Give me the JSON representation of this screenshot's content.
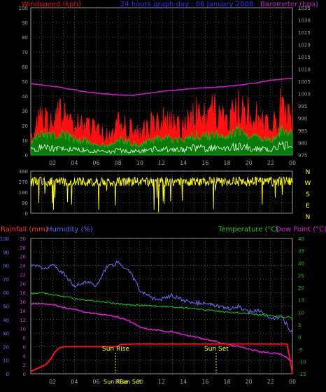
{
  "colors": {
    "background": "#000000",
    "frame": "#9a9a9a",
    "grid": "#7f7f7f",
    "wind_title": "#e01010",
    "header_title": "#3030ff",
    "baro_title": "#c020c0",
    "rain_title": "#ff3030",
    "humidity_title": "#6060ff",
    "temp_title": "#10d010",
    "tick_grey": "#9a9a9a",
    "left_axis_red": "#e03030",
    "left_axis_purple": "#b040b0",
    "hum_axis_blue": "#6666ff",
    "right_axis_green": "#10c010",
    "x_tick_yellow": "#ffff00",
    "wind_gust": "#ff1010",
    "wind_avg": "#10c010",
    "wind_low": "#e8ffe8",
    "barometer": "#c020c0",
    "direction": "#ffff00",
    "humidity_line": "#7070ff",
    "temperature_line": "#10d010",
    "dewpoint_line": "#d020d0",
    "rainfall_line": "#ff1010",
    "annotation": "#ffff00"
  },
  "chart_data": [
    {
      "type": "line",
      "panel": "wind-barometer",
      "header": "24 hours graph day : 06 January 2008",
      "ylabel_left": "Windspeed (kph)",
      "ylabel_right": "Barometer (hpa)",
      "ylim_left": [
        0,
        100
      ],
      "yticks_left": [
        "0",
        "10",
        "20",
        "30",
        "40",
        "50",
        "60",
        "70",
        "80",
        "90",
        "100"
      ],
      "ylim_right": [
        975,
        1035
      ],
      "yticks_right": [
        "975",
        "980",
        "985",
        "990",
        "995",
        "1000",
        "1005",
        "1010",
        "1015",
        "1020",
        "1025",
        "1030",
        "1035"
      ],
      "xticks": [
        "02",
        "04",
        "06",
        "08",
        "10",
        "12",
        "14",
        "16",
        "18",
        "20",
        "22",
        "00"
      ],
      "grid": true,
      "x": [
        0,
        1,
        2,
        3,
        4,
        5,
        6,
        7,
        8,
        9,
        10,
        11,
        12,
        13,
        14,
        15,
        16,
        17,
        18,
        19,
        20,
        21,
        22,
        23,
        24
      ],
      "series": [
        {
          "name": "Barometer",
          "axis": "right",
          "values": [
            1004.0,
            1003.6,
            1003.0,
            1002.3,
            1001.5,
            1000.7,
            1000.3,
            999.8,
            999.4,
            999.3,
            999.6,
            1000.2,
            1000.9,
            1001.3,
            1001.7,
            1002.1,
            1002.4,
            1002.6,
            1002.9,
            1003.4,
            1003.9,
            1004.7,
            1005.4,
            1005.9,
            1006.2
          ]
        },
        {
          "name": "Gust",
          "axis": "left",
          "values": [
            20,
            27,
            24,
            33,
            23,
            22,
            19,
            15,
            23,
            20,
            17,
            23,
            26,
            23,
            21,
            31,
            29,
            34,
            28,
            37,
            31,
            29,
            22,
            37,
            30
          ]
        },
        {
          "name": "Average",
          "axis": "left",
          "values": [
            11,
            14,
            13,
            15,
            11,
            10,
            8,
            6,
            11,
            9,
            7,
            10,
            13,
            11,
            10,
            14,
            13,
            15,
            12,
            17,
            14,
            13,
            10,
            18,
            14
          ]
        },
        {
          "name": "Low",
          "axis": "left",
          "values": [
            4,
            6,
            5,
            6,
            4,
            4,
            3,
            2,
            4,
            3,
            3,
            4,
            5,
            4,
            4,
            6,
            5,
            6,
            5,
            7,
            6,
            5,
            4,
            8,
            6
          ]
        }
      ]
    },
    {
      "type": "line",
      "panel": "wind-direction",
      "ylim": [
        0,
        360
      ],
      "yticks_left": [
        "0",
        "90",
        "180",
        "270",
        "360"
      ],
      "yticks_right": [
        "N",
        "W",
        "S",
        "E",
        "N"
      ],
      "xlim": [
        0,
        24
      ],
      "mean_direction": 270,
      "grid": true
    },
    {
      "type": "line",
      "panel": "rain-humidity-temperature",
      "ylabel_rain": "Rainfall (mm)",
      "ylabel_humidity": "Humidity (%)",
      "ylabel_temp": "Temperature (°C)",
      "ylabel_dew": "Dew Point (°C)",
      "ylim_rain": [
        0,
        30
      ],
      "yticks_rain": [
        "0",
        "2",
        "4",
        "6",
        "8",
        "10",
        "12",
        "14",
        "16",
        "18",
        "20",
        "22",
        "24",
        "26",
        "28",
        "30"
      ],
      "ylim_humidity": [
        0,
        100
      ],
      "yticks_humidity": [
        "0",
        "10",
        "20",
        "30",
        "40",
        "50",
        "60",
        "70",
        "80",
        "90",
        "100"
      ],
      "ylim_temp": [
        -15,
        40
      ],
      "yticks_temp": [
        "-15",
        "-10",
        "-5",
        "0",
        "5",
        "10",
        "15",
        "20",
        "25",
        "30",
        "35",
        "40"
      ],
      "xticks": [
        "02",
        "04",
        "06",
        "08",
        "10",
        "12",
        "14",
        "16",
        "18",
        "20",
        "22",
        "00"
      ],
      "grid": true,
      "x": [
        0,
        1,
        2,
        3,
        4,
        5,
        6,
        7,
        8,
        9,
        10,
        11,
        12,
        13,
        14,
        15,
        16,
        17,
        18,
        19,
        20,
        21,
        22,
        23,
        24
      ],
      "series": [
        {
          "name": "Humidity",
          "axis": "humidity",
          "values": [
            80,
            78,
            80,
            74,
            65,
            68,
            65,
            79,
            82,
            77,
            62,
            56,
            55,
            58,
            54,
            52,
            53,
            50,
            48,
            50,
            46,
            47,
            41,
            42,
            30
          ]
        },
        {
          "name": "Temperature",
          "axis": "temp",
          "values": [
            17.5,
            18.0,
            17.0,
            16.5,
            15.5,
            15.0,
            14.5,
            14.0,
            13.5,
            13.0,
            12.8,
            12.6,
            12.3,
            12.0,
            11.8,
            11.5,
            11.0,
            10.5,
            10.0,
            9.7,
            9.4,
            9.0,
            8.6,
            8.2,
            7.8
          ]
        },
        {
          "name": "Dew Point",
          "axis": "temp",
          "values": [
            13.5,
            13.5,
            13.0,
            12.0,
            11.0,
            10.0,
            9.5,
            9.0,
            8.0,
            6.5,
            4.0,
            3.0,
            2.5,
            2.0,
            1.0,
            0.0,
            -1.0,
            -2.0,
            -3.0,
            -4.0,
            -5.0,
            -6.0,
            -6.5,
            -7.0,
            -10.0
          ]
        },
        {
          "name": "Rainfall",
          "axis": "rain",
          "x": [
            0,
            0.6,
            1.4,
            1.9,
            2.2,
            2.6,
            3.1,
            4.0,
            8.0,
            8.2,
            9.5,
            14,
            18,
            22,
            23.5,
            23.8,
            24
          ],
          "values": [
            0.5,
            1.2,
            2.0,
            3.5,
            4.8,
            5.7,
            6.0,
            6.0,
            6.0,
            6.5,
            6.6,
            6.6,
            6.6,
            6.6,
            6.6,
            3.0,
            0.0
          ]
        }
      ],
      "annotations": [
        {
          "text": "Sun Rise",
          "x": 7.7
        },
        {
          "text": "Sun Set",
          "x": 16.3
        }
      ],
      "x_markers": [
        "Sun Rise",
        "Sun Set"
      ]
    }
  ]
}
